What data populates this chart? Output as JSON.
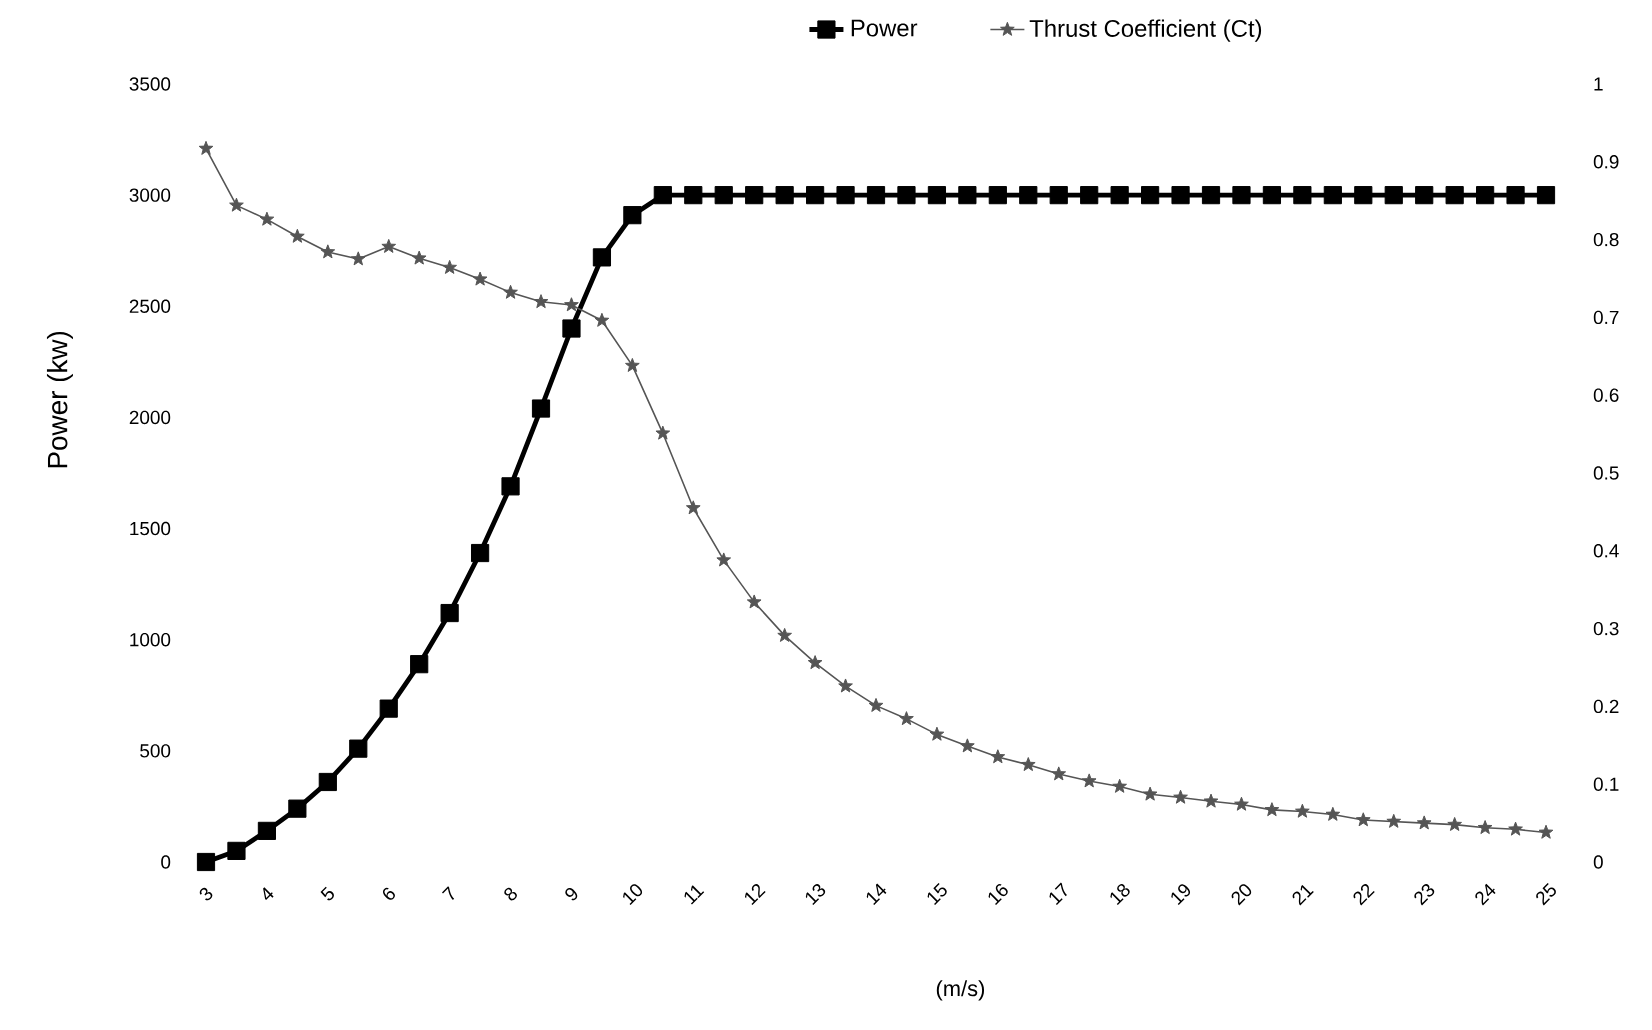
{
  "chart_data": {
    "type": "line",
    "xlabel": "(m/s)",
    "ylabel": "Power (kw)",
    "x": [
      3,
      3.5,
      4,
      4.5,
      5,
      5.5,
      6,
      6.5,
      7,
      7.5,
      8,
      8.5,
      9,
      9.5,
      10,
      10.5,
      11,
      11.5,
      12,
      12.5,
      13,
      13.5,
      14,
      14.5,
      15,
      15.5,
      16,
      16.5,
      17,
      17.5,
      18,
      18.5,
      19,
      19.5,
      20,
      20.5,
      21,
      21.5,
      22,
      22.5,
      23,
      23.5,
      24,
      24.5,
      25
    ],
    "xlim": [
      3,
      25
    ],
    "xticks": [
      3,
      4,
      5,
      6,
      7,
      8,
      9,
      10,
      11,
      12,
      13,
      14,
      15,
      16,
      17,
      18,
      19,
      20,
      21,
      22,
      23,
      24,
      25
    ],
    "ylim": [
      0,
      3500
    ],
    "yticks": [
      0,
      500,
      1000,
      1500,
      2000,
      2500,
      3000,
      3500
    ],
    "y2lim": [
      0,
      1
    ],
    "y2ticks": [
      0,
      0.1,
      0.2,
      0.3,
      0.4,
      0.5,
      0.6,
      0.7,
      0.8,
      0.9,
      1
    ],
    "legend": "top",
    "series": [
      {
        "name": "Power",
        "color": "#000000",
        "marker": "square",
        "values": [
          0,
          50,
          140,
          240,
          360,
          510,
          690,
          890,
          1120,
          1390,
          1690,
          2040,
          2400,
          2720,
          2910,
          3000,
          3000,
          3000,
          3000,
          3000,
          3000,
          3000,
          3000,
          3000,
          3000,
          3000,
          3000,
          3000,
          3000,
          3000,
          3000,
          3000,
          3000,
          3000,
          3000,
          3000,
          3000,
          3000,
          3000,
          3000,
          3000,
          3000,
          3000,
          3000,
          3000
        ]
      },
      {
        "name": "Thrust Coefficient (Ct)",
        "color": "#555555",
        "marker": "star",
        "axis": "y2",
        "values": [
          0.917,
          0.844,
          0.826,
          0.804,
          0.784,
          0.775,
          0.791,
          0.776,
          0.764,
          0.749,
          0.732,
          0.72,
          0.716,
          0.696,
          0.638,
          0.551,
          0.455,
          0.388,
          0.334,
          0.291,
          0.256,
          0.226,
          0.201,
          0.184,
          0.164,
          0.149,
          0.135,
          0.125,
          0.113,
          0.104,
          0.097,
          0.087,
          0.083,
          0.078,
          0.074,
          0.067,
          0.065,
          0.061,
          0.054,
          0.052,
          0.05,
          0.048,
          0.044,
          0.042,
          0.038
        ]
      }
    ]
  }
}
